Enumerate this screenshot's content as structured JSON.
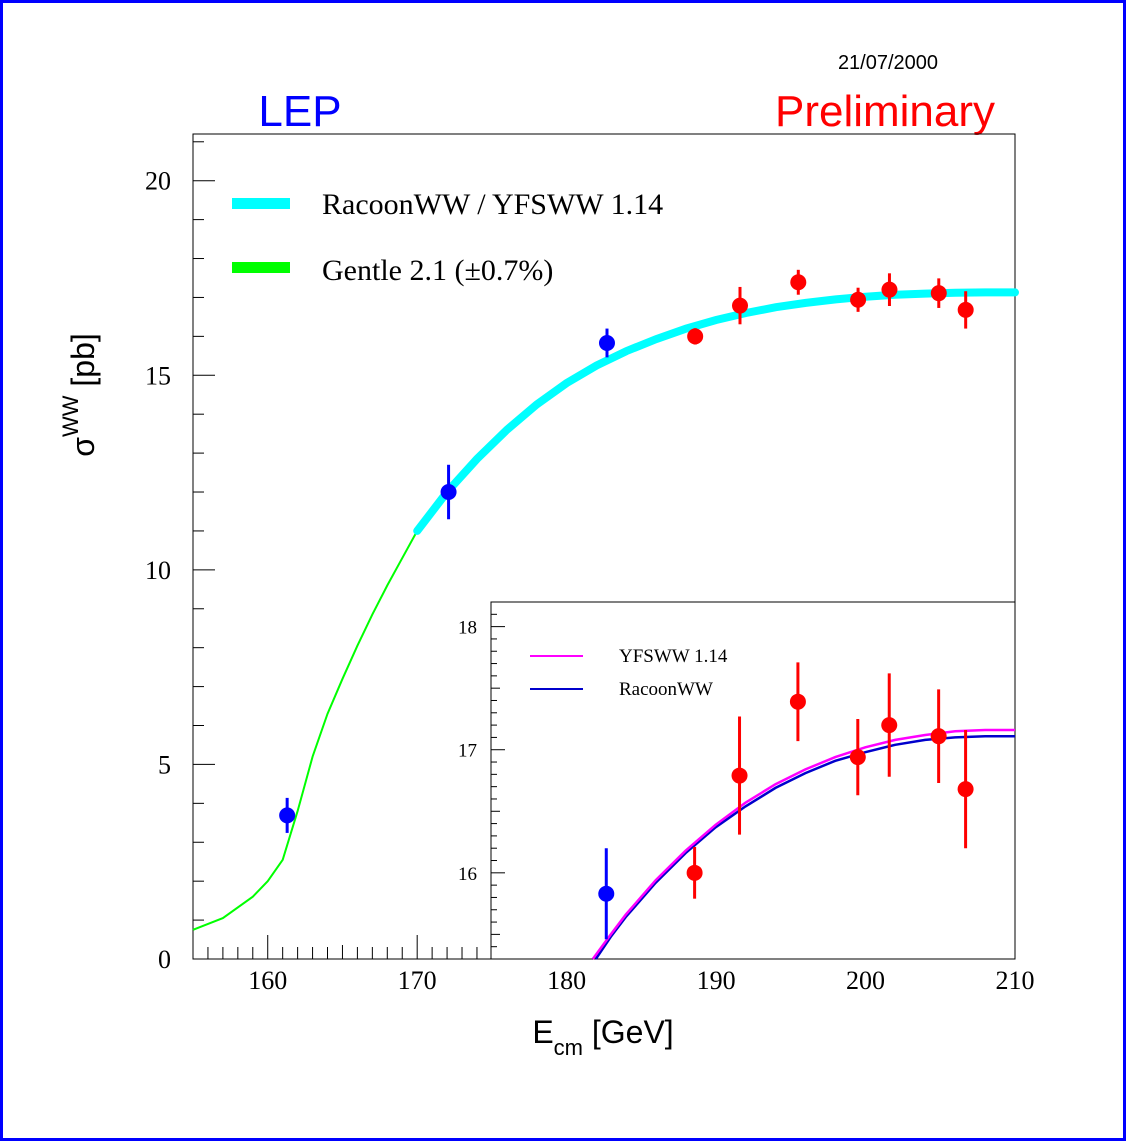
{
  "date": "21/07/2000",
  "lep_label": "LEP",
  "preliminary_label": "Preliminary",
  "colors": {
    "frame": "#0000ff",
    "lep": "#0000ff",
    "preliminary": "#ff0000",
    "racoon_band": "#00ffff",
    "gentle_band": "#00ff00",
    "lep1_points": "#0000ff",
    "lep2_points": "#ff0000",
    "yfsww_line": "#ff00ff",
    "racoon_line": "#0000cc"
  },
  "chart_data": [
    {
      "type": "line",
      "xlabel_main": "E",
      "xlabel_sub": "cm",
      "xlabel_unit": "[GeV]",
      "ylabel_main": "σ",
      "ylabel_sup": "WW",
      "ylabel_unit": "[pb]",
      "xlim": [
        155,
        210
      ],
      "ylim": [
        0,
        21.2
      ],
      "xticks": [
        160,
        170,
        180,
        190,
        200,
        210
      ],
      "yticks": [
        0,
        5,
        10,
        15,
        20
      ],
      "legend_position": "top-left",
      "legend": [
        {
          "label": "RacoonWW / YFSWW 1.14",
          "color": "#00ffff"
        },
        {
          "label": "Gentle 2.1 (±0.7%)",
          "color": "#00ff00"
        }
      ],
      "series": [
        {
          "name": "Gentle 2.1 (±0.7%)",
          "x": [
            155,
            157,
            159,
            160,
            161,
            162,
            163,
            164,
            165,
            166,
            167,
            168,
            169,
            170
          ],
          "y": [
            0.75,
            1.05,
            1.6,
            2.0,
            2.55,
            3.8,
            5.2,
            6.3,
            7.2,
            8.05,
            8.85,
            9.6,
            10.3,
            11.0
          ]
        },
        {
          "name": "RacoonWW / YFSWW 1.14",
          "x": [
            170,
            172,
            174,
            176,
            178,
            180,
            182,
            184,
            186,
            188,
            190,
            192,
            194,
            196,
            198,
            200,
            202,
            204,
            206,
            208,
            210
          ],
          "y": [
            11.0,
            12.0,
            12.85,
            13.6,
            14.25,
            14.8,
            15.25,
            15.62,
            15.93,
            16.2,
            16.42,
            16.6,
            16.75,
            16.86,
            16.95,
            17.02,
            17.07,
            17.1,
            17.12,
            17.13,
            17.13
          ]
        }
      ],
      "points": [
        {
          "x": 161.3,
          "y": 3.69,
          "err": 0.45,
          "group": "lep1"
        },
        {
          "x": 172.1,
          "y": 12.0,
          "err": 0.7,
          "group": "lep1"
        },
        {
          "x": 182.7,
          "y": 15.83,
          "err": 0.37,
          "group": "lep1"
        },
        {
          "x": 188.6,
          "y": 16.0,
          "err": 0.21,
          "group": "lep2"
        },
        {
          "x": 191.6,
          "y": 16.79,
          "err": 0.48,
          "group": "lep2"
        },
        {
          "x": 195.5,
          "y": 17.39,
          "err": 0.32,
          "group": "lep2"
        },
        {
          "x": 199.5,
          "y": 16.94,
          "err": 0.31,
          "group": "lep2"
        },
        {
          "x": 201.6,
          "y": 17.2,
          "err": 0.42,
          "group": "lep2"
        },
        {
          "x": 204.9,
          "y": 17.11,
          "err": 0.38,
          "group": "lep2"
        },
        {
          "x": 206.7,
          "y": 16.68,
          "err": 0.48,
          "group": "lep2"
        }
      ]
    },
    {
      "type": "line",
      "xlim": [
        175,
        210
      ],
      "ylim": [
        15.3,
        18.2
      ],
      "yticks": [
        16,
        17,
        18
      ],
      "legend_position": "top-left",
      "legend": [
        {
          "label": "YFSWW 1.14",
          "color": "#ff00ff"
        },
        {
          "label": "RacoonWW",
          "color": "#0000cc"
        }
      ],
      "series": [
        {
          "name": "YFSWW 1.14",
          "x": [
            181.8,
            183,
            184,
            186,
            188,
            190,
            192,
            194,
            196,
            198,
            200,
            202,
            204,
            206,
            208,
            210
          ],
          "y": [
            15.3,
            15.5,
            15.66,
            15.94,
            16.18,
            16.39,
            16.57,
            16.72,
            16.84,
            16.94,
            17.02,
            17.08,
            17.12,
            17.15,
            17.16,
            17.16
          ]
        },
        {
          "name": "RacoonWW",
          "x": [
            182.0,
            183,
            184,
            186,
            188,
            190,
            192,
            194,
            196,
            198,
            200,
            202,
            204,
            206,
            208,
            210
          ],
          "y": [
            15.3,
            15.48,
            15.64,
            15.92,
            16.16,
            16.37,
            16.54,
            16.69,
            16.81,
            16.91,
            16.98,
            17.04,
            17.08,
            17.1,
            17.11,
            17.11
          ]
        }
      ],
      "points": [
        {
          "x": 182.7,
          "y": 15.83,
          "err": 0.37,
          "group": "lep1"
        },
        {
          "x": 188.6,
          "y": 16.0,
          "err": 0.21,
          "group": "lep2"
        },
        {
          "x": 191.6,
          "y": 16.79,
          "err": 0.48,
          "group": "lep2"
        },
        {
          "x": 195.5,
          "y": 17.39,
          "err": 0.32,
          "group": "lep2"
        },
        {
          "x": 199.5,
          "y": 16.94,
          "err": 0.31,
          "group": "lep2"
        },
        {
          "x": 201.6,
          "y": 17.2,
          "err": 0.42,
          "group": "lep2"
        },
        {
          "x": 204.9,
          "y": 17.11,
          "err": 0.38,
          "group": "lep2"
        },
        {
          "x": 206.7,
          "y": 16.68,
          "err": 0.48,
          "group": "lep2"
        }
      ]
    }
  ]
}
